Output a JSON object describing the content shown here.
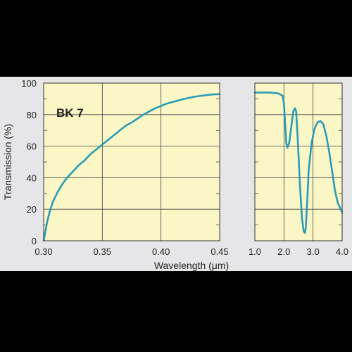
{
  "chart_data": [
    {
      "type": "line",
      "title": "BK 7",
      "xlabel": "Wavelength (μm)",
      "ylabel": "Transmission (%)",
      "xlim": [
        0.3,
        0.45
      ],
      "ylim": [
        0,
        100
      ],
      "x_ticks": [
        "0.30",
        "0.35",
        "0.40",
        "0.45"
      ],
      "x_tick_values": [
        0.3,
        0.35,
        0.4,
        0.45
      ],
      "y_ticks": [
        "0",
        "20",
        "40",
        "60",
        "80",
        "100"
      ],
      "y_tick_values": [
        0,
        20,
        40,
        60,
        80,
        100
      ],
      "grid": true,
      "background_color": "#fbf6c6",
      "line_color": "#2a9cb8",
      "series": [
        {
          "x": [
            0.3,
            0.301,
            0.303,
            0.305,
            0.308,
            0.312,
            0.316,
            0.32,
            0.325,
            0.33,
            0.335,
            0.34,
            0.345,
            0.35,
            0.355,
            0.36,
            0.365,
            0.37,
            0.375,
            0.38,
            0.385,
            0.39,
            0.395,
            0.4,
            0.405,
            0.41,
            0.415,
            0.42,
            0.425,
            0.43,
            0.435,
            0.44,
            0.445,
            0.45
          ],
          "y": [
            0,
            4,
            12,
            18,
            25,
            31,
            36,
            40,
            44,
            48,
            51,
            55,
            58,
            61,
            64,
            67,
            70,
            73,
            75,
            77.5,
            80,
            82,
            84,
            85.5,
            87,
            88,
            89,
            90,
            90.8,
            91.5,
            92,
            92.5,
            92.8,
            93
          ]
        }
      ]
    },
    {
      "type": "line",
      "xlim": [
        1.0,
        4.0
      ],
      "ylim": [
        0,
        100
      ],
      "x_ticks": [
        "1.0",
        "2.0",
        "3.0",
        "4.0"
      ],
      "x_tick_values": [
        1.0,
        2.0,
        3.0,
        4.0
      ],
      "grid": true,
      "background_color": "#fbf6c6",
      "line_color": "#2a9cb8",
      "series": [
        {
          "x": [
            1.0,
            1.5,
            1.8,
            1.95,
            2.0,
            2.05,
            2.08,
            2.12,
            2.18,
            2.25,
            2.32,
            2.38,
            2.42,
            2.48,
            2.55,
            2.62,
            2.68,
            2.72,
            2.75,
            2.8,
            2.85,
            2.95,
            3.05,
            3.15,
            3.25,
            3.35,
            3.45,
            3.55,
            3.65,
            3.75,
            3.85,
            4.0
          ],
          "y": [
            94,
            94,
            93.5,
            92,
            87,
            72,
            62,
            59,
            62,
            72,
            82,
            84,
            82,
            62,
            35,
            14,
            6,
            5,
            8,
            25,
            45,
            62,
            71,
            75,
            76,
            74,
            67,
            57,
            45,
            32,
            24,
            18
          ]
        }
      ]
    }
  ]
}
